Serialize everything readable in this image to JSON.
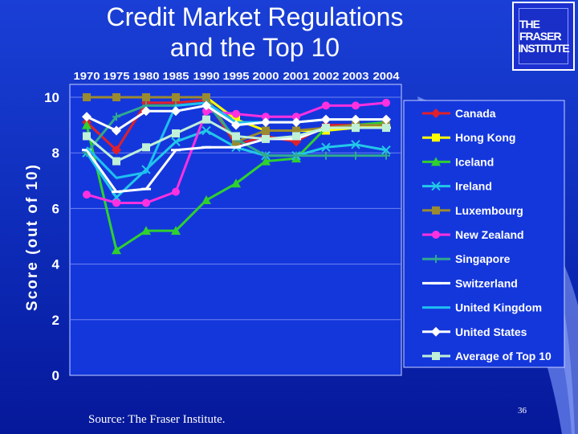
{
  "slide": {
    "title_line1": "Credit Market Regulations",
    "title_line2": "and the Top 10",
    "logo_line1": "THE FRASER",
    "logo_line2": "INSTITUTE",
    "source": "Source: The Fraser Institute.",
    "page_number": "36"
  },
  "chart_data": {
    "type": "line",
    "title": "",
    "xlabel": "",
    "ylabel": "Score (out of 10)",
    "ylim": [
      0,
      10
    ],
    "yticks": [
      0,
      2,
      4,
      6,
      8,
      10
    ],
    "categories": [
      "1970",
      "1975",
      "1980",
      "1985",
      "1990",
      "1995",
      "2000",
      "2001",
      "2002",
      "2003",
      "2004"
    ],
    "legend_position": "right",
    "grid": true,
    "series": [
      {
        "name": "Canada",
        "color": "#e0202a",
        "marker": "diamond",
        "values": [
          9.1,
          8.1,
          9.8,
          9.8,
          9.9,
          8.3,
          8.6,
          8.4,
          9.0,
          9.0,
          9.0
        ]
      },
      {
        "name": "Hong Kong",
        "color": "#ffff00",
        "marker": "square",
        "values": [
          10.0,
          10.0,
          10.0,
          10.0,
          10.0,
          9.2,
          8.8,
          8.8,
          8.8,
          8.9,
          9.0
        ]
      },
      {
        "name": "Iceland",
        "color": "#2fd02f",
        "marker": "triangle",
        "values": [
          9.0,
          4.5,
          5.2,
          5.2,
          6.3,
          6.9,
          7.7,
          7.8,
          8.9,
          9.0,
          9.1
        ]
      },
      {
        "name": "Ireland",
        "color": "#22c8e8",
        "marker": "x",
        "values": [
          8.0,
          6.4,
          7.4,
          8.4,
          8.8,
          8.2,
          7.9,
          7.9,
          8.2,
          8.3,
          8.1
        ]
      },
      {
        "name": "Luxembourg",
        "color": "#9a8a30",
        "marker": "square",
        "values": [
          10.0,
          10.0,
          10.0,
          10.0,
          10.0,
          8.4,
          8.8,
          8.8,
          8.9,
          9.0,
          9.0
        ]
      },
      {
        "name": "New Zealand",
        "color": "#ff30e0",
        "marker": "circle",
        "values": [
          6.5,
          6.2,
          6.2,
          6.6,
          9.5,
          9.4,
          9.3,
          9.3,
          9.7,
          9.7,
          9.8
        ]
      },
      {
        "name": "Singapore",
        "color": "#30a890",
        "marker": "plus",
        "values": [
          8.0,
          9.3,
          9.7,
          9.7,
          9.8,
          8.5,
          7.9,
          7.9,
          7.9,
          7.9,
          7.9
        ]
      },
      {
        "name": "Switzerland",
        "color": "#ffffff",
        "marker": "dash",
        "values": [
          8.1,
          6.6,
          6.7,
          8.1,
          8.2,
          8.2,
          8.5,
          8.5,
          8.9,
          8.9,
          8.9
        ]
      },
      {
        "name": "United Kingdom",
        "color": "#1ec0f0",
        "marker": "none",
        "values": [
          8.2,
          7.1,
          7.3,
          9.7,
          9.8,
          9.1,
          9.1,
          9.1,
          9.2,
          9.2,
          9.2
        ]
      },
      {
        "name": "United States",
        "color": "#ffffff",
        "marker": "diamond",
        "values": [
          9.3,
          8.8,
          9.5,
          9.5,
          9.7,
          9.0,
          9.1,
          9.1,
          9.2,
          9.2,
          9.2
        ]
      },
      {
        "name": "Average of Top 10",
        "color": "#bff0d8",
        "marker": "square",
        "values": [
          8.6,
          7.7,
          8.2,
          8.7,
          9.2,
          8.6,
          8.5,
          8.6,
          8.9,
          8.9,
          8.9
        ]
      }
    ]
  }
}
